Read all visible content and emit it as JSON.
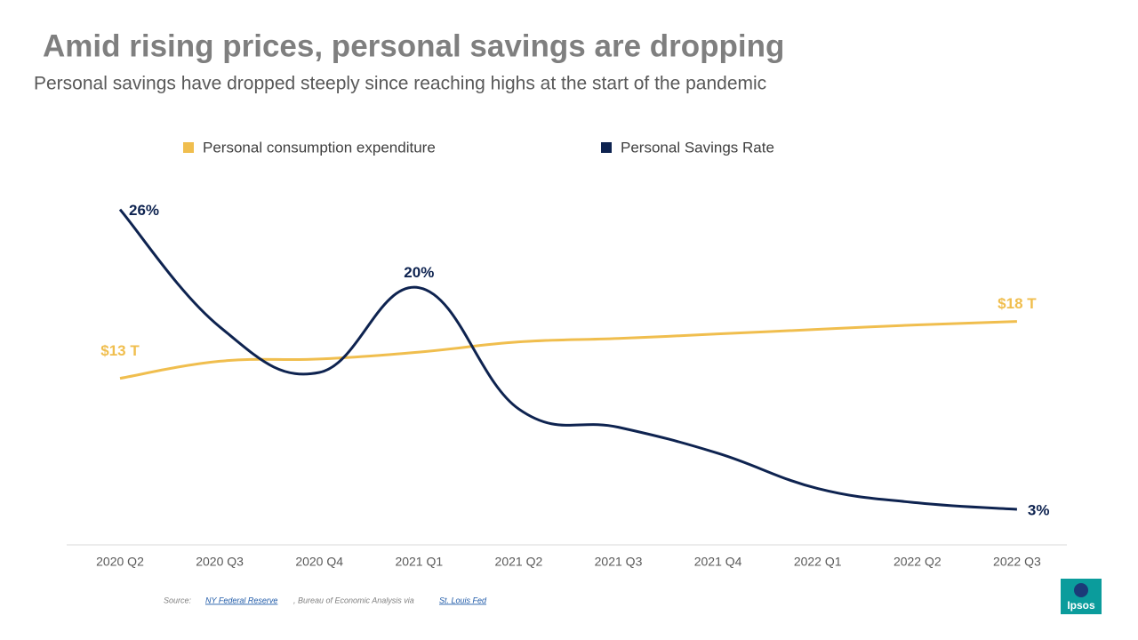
{
  "chart_data": {
    "type": "line",
    "title": "Amid rising prices, personal savings are dropping",
    "subtitle": "Personal savings have dropped steeply since reaching highs at the start of the pandemic",
    "categories": [
      "2020 Q2",
      "2020 Q3",
      "2020 Q4",
      "2021 Q1",
      "2021 Q2",
      "2021 Q3",
      "2021 Q4",
      "2022 Q1",
      "2022 Q2",
      "2022 Q3"
    ],
    "ylim": [
      0,
      30
    ],
    "y2lim": [
      0,
      20
    ],
    "series": [
      {
        "name": "Personal consumption expenditure",
        "color": "#f0be4e",
        "axis": "y2",
        "values": [
          13,
          14.5,
          14.7,
          15.3,
          16.2,
          16.5,
          16.9,
          17.3,
          17.7,
          18
        ],
        "value_labels": [
          "$13 T",
          null,
          null,
          null,
          null,
          null,
          null,
          null,
          null,
          "$18 T"
        ]
      },
      {
        "name": "Personal Savings Rate",
        "color": "#0e2350",
        "values": [
          26,
          17,
          13.5,
          20,
          10.7,
          9.3,
          7.3,
          4.6,
          3.5,
          3
        ],
        "value_labels": [
          "26%",
          null,
          null,
          "20%",
          null,
          null,
          null,
          null,
          null,
          "3%"
        ]
      }
    ]
  },
  "source": {
    "label": "Source:",
    "link1": "NY Federal Reserve",
    "middle": ", Bureau of Economic Analysis via ",
    "link2": "St. Louis Fed"
  },
  "logo": "Ipsos"
}
